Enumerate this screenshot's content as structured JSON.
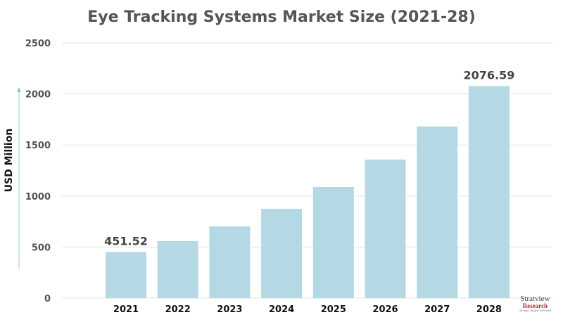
{
  "chart_data": {
    "type": "bar",
    "title": "Eye Tracking Systems Market Size (2021-28)",
    "xlabel": "",
    "ylabel": "USD Million",
    "categories": [
      "2021",
      "2022",
      "2023",
      "2024",
      "2025",
      "2026",
      "2027",
      "2028"
    ],
    "values": [
      451.52,
      558,
      702,
      875,
      1088,
      1357,
      1680,
      2076.59
    ],
    "data_labels": {
      "0": "451.52",
      "7": "2076.59"
    },
    "ylim": [
      0,
      2500
    ],
    "yticks": [
      "0",
      "500",
      "1000",
      "1500",
      "2000",
      "2500"
    ],
    "grid": true,
    "bar_color": "#b4d8e4",
    "legend": "none"
  },
  "logo": {
    "name": "Stratview",
    "sub": "Research",
    "tagline": "Strategic Insights Delivered"
  }
}
